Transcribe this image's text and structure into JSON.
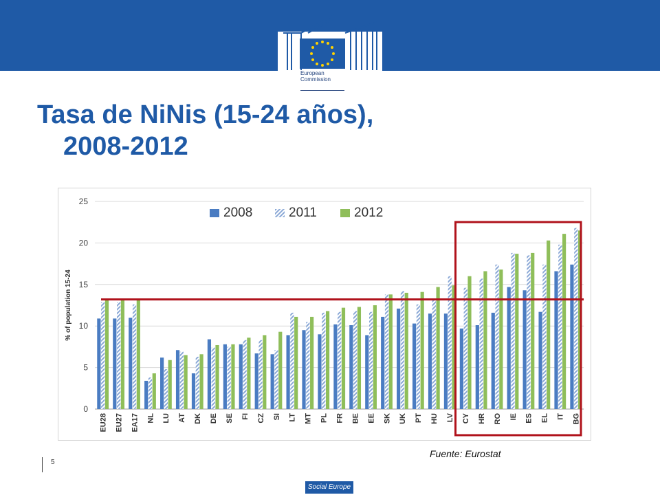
{
  "header": {
    "org_line1": "European",
    "org_line2": "Commission"
  },
  "title": {
    "line1": "Tasa de NiNis (15-24 años),",
    "line2": "2008-2012"
  },
  "source_note": "Fuente: Eurostat",
  "page_number": "5",
  "footer_badge": "Social Europe",
  "colors": {
    "brand": "#1f5aa6",
    "series_2008": "#4a7cc2",
    "series_2011": "#8aa8d6",
    "series_2012": "#8fbe5a",
    "highlight": "#b0121b"
  },
  "chart_data": {
    "type": "bar",
    "ylabel": "% of population 15-24",
    "xlabel": "",
    "ylim": [
      0,
      25
    ],
    "yticks": [
      0,
      5,
      10,
      15,
      20,
      25
    ],
    "grid": true,
    "legend_position": "top",
    "categories": [
      "EU28",
      "EU27",
      "EA17",
      "NL",
      "LU",
      "AT",
      "DK",
      "DE",
      "SE",
      "FI",
      "CZ",
      "SI",
      "LT",
      "MT",
      "PL",
      "FR",
      "BE",
      "EE",
      "SK",
      "UK",
      "PT",
      "HU",
      "LV",
      "CY",
      "HR",
      "RO",
      "IE",
      "ES",
      "EL",
      "IT",
      "BG"
    ],
    "series": [
      {
        "name": "2008",
        "values": [
          10.9,
          10.9,
          11.0,
          3.4,
          6.2,
          7.1,
          4.3,
          8.4,
          7.8,
          7.8,
          6.7,
          6.6,
          8.9,
          9.5,
          9.0,
          10.2,
          10.1,
          8.9,
          11.1,
          12.1,
          10.3,
          11.5,
          11.5,
          9.7,
          10.1,
          11.6,
          14.7,
          14.3,
          11.7,
          16.6,
          17.4
        ]
      },
      {
        "name": "2011",
        "values": [
          12.9,
          12.9,
          12.6,
          3.8,
          4.8,
          6.9,
          6.3,
          7.4,
          7.5,
          8.3,
          8.3,
          7.1,
          11.6,
          10.5,
          11.6,
          11.7,
          11.8,
          11.7,
          13.8,
          14.2,
          12.6,
          13.2,
          16.0,
          14.6,
          15.7,
          17.4,
          18.8,
          18.5,
          17.4,
          19.8,
          21.8
        ]
      },
      {
        "name": "2012",
        "values": [
          13.2,
          13.1,
          13.2,
          4.3,
          5.9,
          6.5,
          6.6,
          7.7,
          7.8,
          8.6,
          8.9,
          9.3,
          11.1,
          11.1,
          11.8,
          12.2,
          12.3,
          12.5,
          13.8,
          14.0,
          14.1,
          14.7,
          14.9,
          16.0,
          16.6,
          16.8,
          18.7,
          18.8,
          20.3,
          21.1,
          21.5
        ]
      }
    ],
    "annotations": {
      "reference_line_value": 13.2,
      "highlighted_categories": [
        "CY",
        "HR",
        "RO",
        "IE",
        "ES",
        "EL",
        "IT",
        "BG"
      ]
    }
  }
}
